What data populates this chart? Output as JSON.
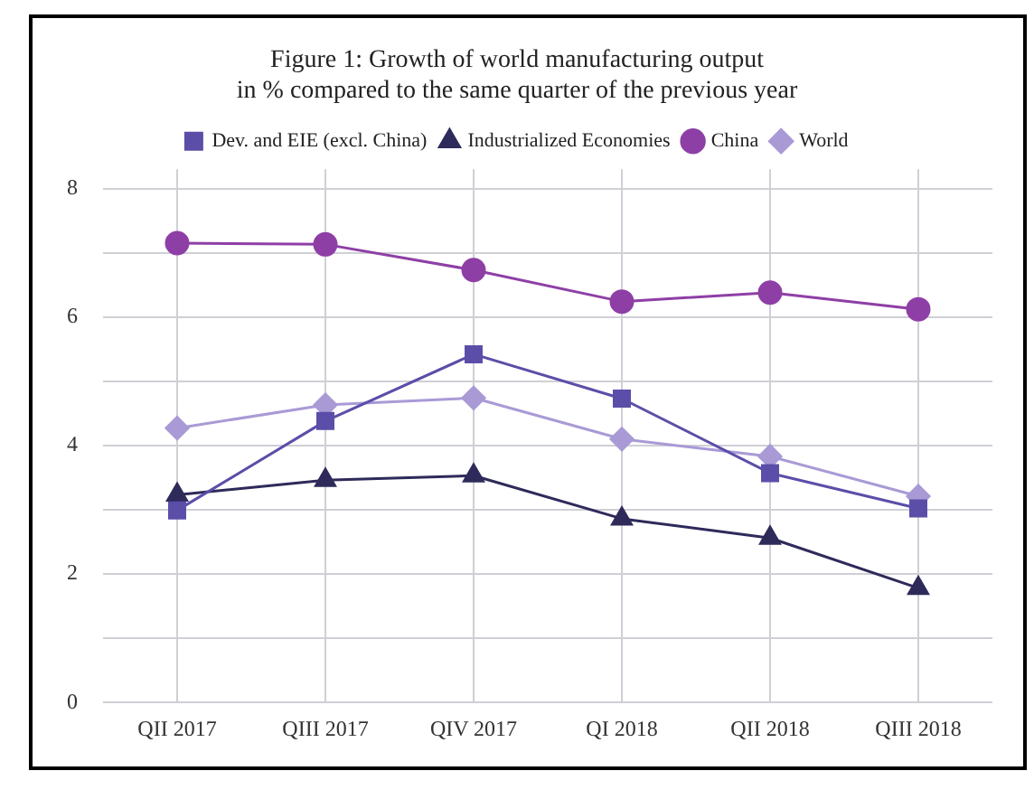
{
  "chart_data": {
    "type": "line",
    "title": [
      "Figure 1: Growth of world manufacturing output",
      "in % compared to the same quarter of the previous year"
    ],
    "categories": [
      "QII 2017",
      "QIII 2017",
      "QIV 2017",
      "QI 2018",
      "QII 2018",
      "QIII 2018"
    ],
    "series": [
      {
        "name": "Dev. and EIE (excl. China)",
        "color": "#5b4ea8",
        "marker": "square",
        "values": [
          2.99,
          4.38,
          5.42,
          4.73,
          3.57,
          3.02
        ]
      },
      {
        "name": "Industrialized Economies",
        "color": "#2e2a5a",
        "marker": "triangle",
        "values": [
          3.23,
          3.46,
          3.53,
          2.86,
          2.56,
          1.78
        ]
      },
      {
        "name": "China",
        "color": "#8e3fa6",
        "marker": "circle",
        "values": [
          7.15,
          7.13,
          6.73,
          6.24,
          6.38,
          6.12
        ]
      },
      {
        "name": "World",
        "color": "#a99ad6",
        "marker": "diamond",
        "values": [
          4.27,
          4.63,
          4.74,
          4.1,
          3.83,
          3.21
        ]
      }
    ],
    "ylim": [
      0,
      8.3
    ],
    "yticks": [
      0,
      {
        "value": 1,
        "label": null
      },
      2,
      {
        "value": 3,
        "label": null
      },
      4,
      {
        "value": 5,
        "label": null
      },
      6,
      {
        "value": 7,
        "label": null
      },
      8
    ],
    "grid": true,
    "legend": "top"
  }
}
